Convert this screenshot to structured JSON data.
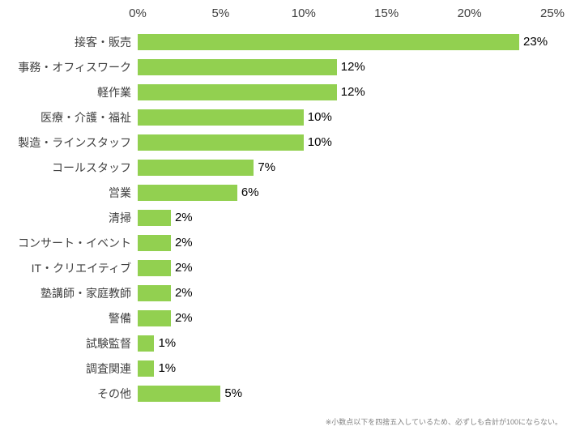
{
  "chart_data": {
    "type": "bar",
    "orientation": "horizontal",
    "title": "",
    "xlabel": "",
    "ylabel": "",
    "xlim": [
      0,
      25
    ],
    "x_ticks": [
      "0%",
      "5%",
      "10%",
      "15%",
      "20%",
      "25%"
    ],
    "grid": false,
    "legend": false,
    "bar_color": "#92d050",
    "categories": [
      "接客・販売",
      "事務・オフィスワーク",
      "軽作業",
      "医療・介護・福祉",
      "製造・ラインスタッフ",
      "コールスタッフ",
      "営業",
      "清掃",
      "コンサート・イベント",
      "IT・クリエイティブ",
      "塾講師・家庭教師",
      "警備",
      "試験監督",
      "調査関連",
      "その他"
    ],
    "values": [
      23,
      12,
      12,
      10,
      10,
      7,
      6,
      2,
      2,
      2,
      2,
      2,
      1,
      1,
      5
    ],
    "value_labels": [
      "23%",
      "12%",
      "12%",
      "10%",
      "10%",
      "7%",
      "6%",
      "2%",
      "2%",
      "2%",
      "2%",
      "2%",
      "1%",
      "1%",
      "5%"
    ]
  },
  "footnote": "※小数点以下を四捨五入しているため、必ずしも合計が100にならない。"
}
